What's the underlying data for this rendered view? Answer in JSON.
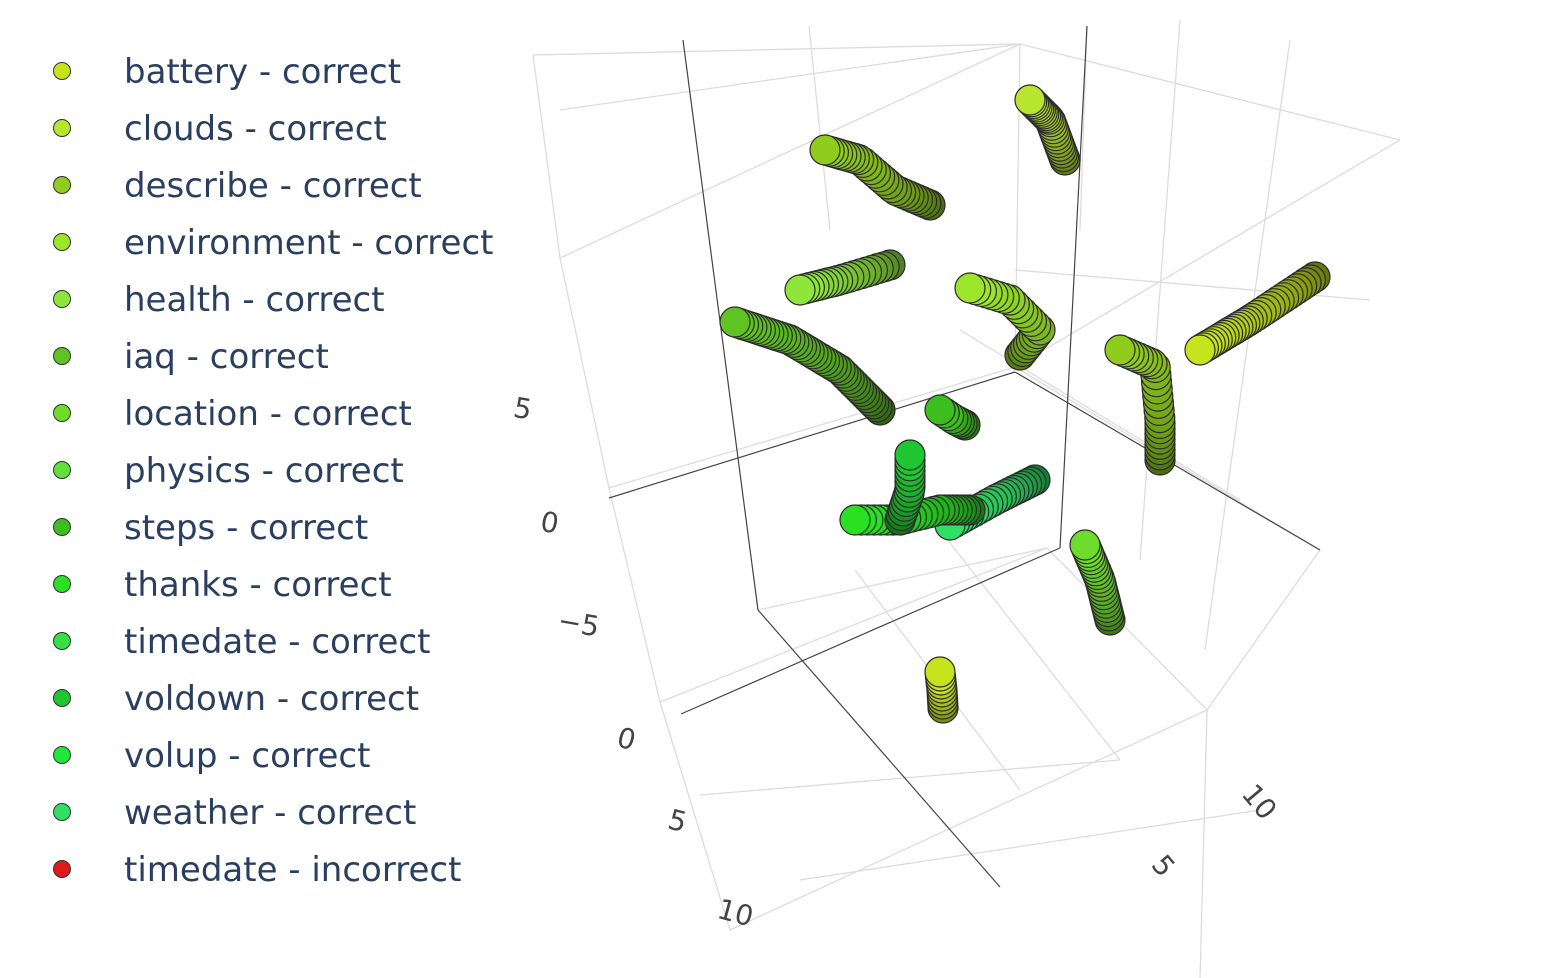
{
  "chart_data": {
    "type": "scatter3d",
    "legend": [
      {
        "name": "battery - correct",
        "color": "#c6e41c"
      },
      {
        "name": "clouds - correct",
        "color": "#b8e52e"
      },
      {
        "name": "describe - correct",
        "color": "#8fcc1e"
      },
      {
        "name": "environment - correct",
        "color": "#9be52a"
      },
      {
        "name": "health - correct",
        "color": "#8ee63c"
      },
      {
        "name": "iaq - correct",
        "color": "#5fc423"
      },
      {
        "name": "location - correct",
        "color": "#6ddc2a"
      },
      {
        "name": "physics - correct",
        "color": "#62e03a"
      },
      {
        "name": "steps - correct",
        "color": "#3cbf1c"
      },
      {
        "name": "thanks - correct",
        "color": "#2ae022"
      },
      {
        "name": "timedate - correct",
        "color": "#35e043"
      },
      {
        "name": "voldown - correct",
        "color": "#1fc631"
      },
      {
        "name": "volup - correct",
        "color": "#1fe83a"
      },
      {
        "name": "weather - correct",
        "color": "#2fe064"
      },
      {
        "name": "timedate - incorrect",
        "color": "#e01a1a"
      }
    ],
    "axes": {
      "x_ticks": [
        "0",
        "5",
        "10"
      ],
      "y_ticks": [
        "5",
        "10"
      ],
      "z_ticks": [
        "5",
        "0",
        "−5"
      ]
    },
    "grid": true
  }
}
